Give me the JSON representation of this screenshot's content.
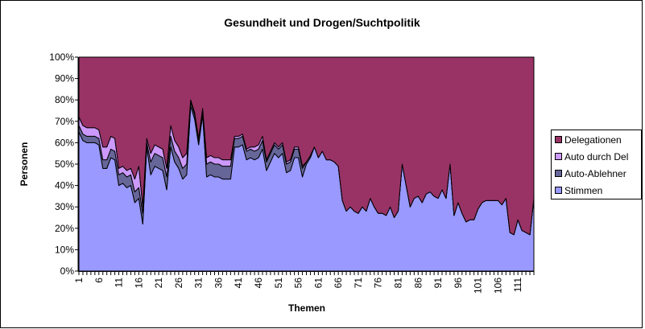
{
  "chart_data": {
    "type": "area",
    "stacked": "percent",
    "title": "Gesundheit und Drogen/Suchtpolitik",
    "xlabel": "Themen",
    "ylabel": "Personen",
    "ylim": [
      0,
      100
    ],
    "y_tick_labels": [
      "0%",
      "10%",
      "20%",
      "30%",
      "40%",
      "50%",
      "60%",
      "70%",
      "80%",
      "90%",
      "100%"
    ],
    "x_tick_labels": [
      "1",
      "6",
      "11",
      "16",
      "21",
      "26",
      "31",
      "36",
      "41",
      "46",
      "51",
      "56",
      "61",
      "66",
      "71",
      "76",
      "81",
      "86",
      "91",
      "96",
      "101",
      "106",
      "111"
    ],
    "categories": [
      1,
      2,
      3,
      4,
      5,
      6,
      7,
      8,
      9,
      10,
      11,
      12,
      13,
      14,
      15,
      16,
      17,
      18,
      19,
      20,
      21,
      22,
      23,
      24,
      25,
      26,
      27,
      28,
      29,
      30,
      31,
      32,
      33,
      34,
      35,
      36,
      37,
      38,
      39,
      40,
      41,
      42,
      43,
      44,
      45,
      46,
      47,
      48,
      49,
      50,
      51,
      52,
      53,
      54,
      55,
      56,
      57,
      58,
      59,
      60,
      61,
      62,
      63,
      64,
      65,
      66,
      67,
      68,
      69,
      70,
      71,
      72,
      73,
      74,
      75,
      76,
      77,
      78,
      79,
      80,
      81,
      82,
      83,
      84,
      85,
      86,
      87,
      88,
      89,
      90,
      91,
      92,
      93,
      94,
      95,
      96,
      97,
      98,
      99,
      100,
      101,
      102,
      103,
      104,
      105,
      106,
      107,
      108,
      109,
      110,
      111,
      112,
      113,
      114,
      115
    ],
    "grid": false,
    "legend_position": "right",
    "series": [
      {
        "name": "Stimmen",
        "color": "#9999FF",
        "values": [
          65,
          61,
          60,
          60,
          60,
          59,
          48,
          48,
          53,
          52,
          40,
          41,
          39,
          40,
          32,
          34,
          22,
          58,
          45,
          49,
          48,
          47,
          38,
          58,
          51,
          48,
          43,
          45,
          77,
          71,
          59,
          73,
          44,
          45,
          44,
          44,
          43,
          43,
          43,
          58,
          58,
          59,
          52,
          53,
          52,
          53,
          57,
          47,
          51,
          55,
          53,
          55,
          46,
          47,
          53,
          53,
          44,
          50,
          53,
          58,
          53,
          56,
          52,
          52,
          51,
          49,
          33,
          28,
          30,
          28,
          27,
          30,
          28,
          34,
          30,
          27,
          27,
          26,
          30,
          25,
          28,
          50,
          40,
          30,
          34,
          35,
          32,
          36,
          37,
          35,
          34,
          38,
          34,
          50,
          26,
          32,
          27,
          23,
          24,
          24,
          29,
          32,
          33,
          33,
          33,
          33,
          31,
          34,
          18,
          17,
          24,
          19,
          18,
          17,
          34
        ]
      },
      {
        "name": "Auto-Ablehner",
        "color": "#666699",
        "values": [
          3,
          3,
          3,
          3,
          3,
          3,
          4,
          4,
          4,
          4,
          5,
          5,
          5,
          5,
          5,
          5,
          5,
          2,
          6,
          6,
          6,
          6,
          6,
          5,
          5,
          5,
          5,
          5,
          2,
          2,
          2,
          2,
          6,
          6,
          6,
          6,
          6,
          6,
          6,
          4,
          4,
          4,
          4,
          4,
          4,
          4,
          4,
          4,
          4,
          4,
          4,
          4,
          4,
          4,
          4,
          4,
          4,
          1,
          1,
          0,
          0,
          0,
          0,
          0,
          0,
          0,
          0,
          0,
          0,
          0,
          0,
          0,
          0,
          0,
          0,
          0,
          0,
          0,
          0,
          0,
          0,
          0,
          0,
          0,
          0,
          0,
          0,
          0,
          0,
          0,
          0,
          0,
          0,
          0,
          0,
          0,
          0,
          0,
          0,
          0,
          0,
          0,
          0,
          0,
          0,
          0,
          0,
          0,
          0,
          0,
          0,
          0,
          0,
          0,
          0
        ]
      },
      {
        "name": "Auto durch Del",
        "color": "#CC99FF",
        "values": [
          4,
          4,
          4,
          4,
          4,
          4,
          6,
          6,
          6,
          6,
          3,
          3,
          3,
          3,
          6,
          10,
          3,
          2,
          4,
          4,
          4,
          4,
          4,
          5,
          5,
          5,
          5,
          5,
          1,
          1,
          1,
          1,
          3,
          3,
          3,
          3,
          3,
          3,
          3,
          1,
          1,
          1,
          1,
          1,
          2,
          2,
          2,
          1,
          1,
          1,
          1,
          1,
          1,
          1,
          1,
          1,
          1,
          0,
          0,
          0,
          0,
          0,
          0,
          0,
          0,
          0,
          0,
          0,
          0,
          0,
          0,
          0,
          0,
          0,
          0,
          0,
          0,
          0,
          0,
          0,
          0,
          0,
          0,
          0,
          0,
          0,
          0,
          0,
          0,
          0,
          0,
          0,
          0,
          0,
          0,
          0,
          0,
          0,
          0,
          0,
          0,
          0,
          0,
          0,
          0,
          0,
          0,
          0,
          0,
          0,
          0,
          0,
          0,
          0,
          0
        ]
      },
      {
        "name": "Delegationen",
        "color": "#993366",
        "values": [
          28,
          32,
          33,
          33,
          33,
          34,
          42,
          42,
          37,
          38,
          52,
          51,
          53,
          52,
          57,
          51,
          70,
          38,
          45,
          41,
          42,
          43,
          52,
          32,
          39,
          42,
          47,
          45,
          20,
          26,
          38,
          24,
          47,
          46,
          47,
          47,
          48,
          48,
          48,
          37,
          37,
          36,
          43,
          42,
          42,
          41,
          37,
          48,
          44,
          40,
          42,
          40,
          49,
          48,
          42,
          42,
          51,
          49,
          46,
          42,
          47,
          44,
          48,
          48,
          49,
          51,
          67,
          72,
          70,
          72,
          73,
          70,
          72,
          66,
          70,
          73,
          73,
          74,
          70,
          75,
          72,
          50,
          60,
          70,
          66,
          65,
          68,
          64,
          63,
          65,
          66,
          62,
          66,
          50,
          74,
          68,
          73,
          77,
          76,
          76,
          71,
          68,
          67,
          67,
          67,
          67,
          69,
          66,
          82,
          83,
          76,
          81,
          82,
          83,
          66
        ]
      }
    ],
    "legend_order": [
      "Delegationen",
      "Auto durch Del",
      "Auto-Ablehner",
      "Stimmen"
    ]
  }
}
